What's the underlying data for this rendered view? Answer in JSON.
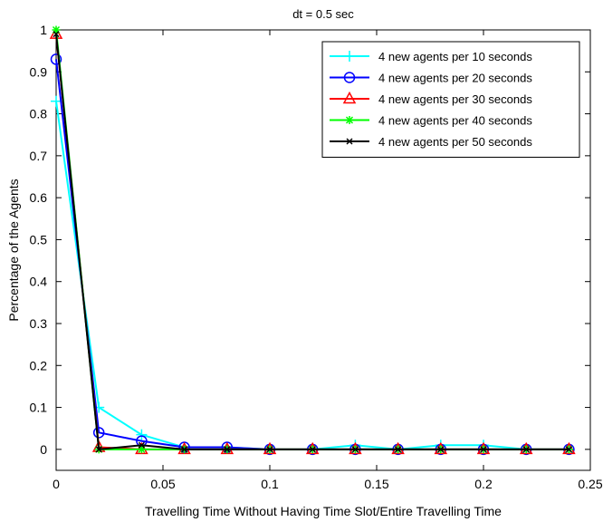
{
  "chart_data": {
    "type": "line",
    "title": "dt = 0.5 sec",
    "xlabel": "Travelling Time Without Having Time Slot/Entire Travelling Time",
    "ylabel": "Percentage of the Agents",
    "xlim": [
      0,
      0.25
    ],
    "ylim": [
      -0.05,
      1
    ],
    "xticks": [
      "0",
      "0.05",
      "0.1",
      "0.15",
      "0.2",
      "0.25"
    ],
    "yticks": [
      "0",
      "0.1",
      "0.2",
      "0.3",
      "0.4",
      "0.5",
      "0.6",
      "0.7",
      "0.8",
      "0.9",
      "1"
    ],
    "grid": false,
    "legend_position": "top-right",
    "x": [
      0,
      0.02,
      0.04,
      0.06,
      0.08,
      0.1,
      0.12,
      0.14,
      0.16,
      0.18,
      0.2,
      0.22,
      0.24
    ],
    "series": [
      {
        "name": "4 new agents per 10 seconds",
        "color": "#00ffff",
        "marker": "plus",
        "values": [
          0.83,
          0.1,
          0.035,
          0.005,
          0.005,
          0,
          0,
          0.01,
          0,
          0.01,
          0.01,
          0,
          0
        ]
      },
      {
        "name": "4 new agents per 20 seconds",
        "color": "#0000ff",
        "marker": "circle",
        "values": [
          0.93,
          0.04,
          0.02,
          0.005,
          0.005,
          0,
          0,
          0,
          0,
          0,
          0,
          0,
          0
        ]
      },
      {
        "name": "4 new agents per 30 seconds",
        "color": "#ff0000",
        "marker": "triangle",
        "values": [
          0.99,
          0.005,
          0,
          0,
          0,
          0,
          0,
          0,
          0,
          0,
          0,
          0,
          0
        ]
      },
      {
        "name": "4 new agents per 40 seconds",
        "color": "#00ff00",
        "marker": "star",
        "values": [
          1.0,
          0,
          0,
          0,
          0,
          0,
          0,
          0,
          0,
          0,
          0,
          0,
          0
        ]
      },
      {
        "name": "4 new agents per 50 seconds",
        "color": "#000000",
        "marker": "x",
        "values": [
          0.99,
          0,
          0.01,
          0,
          0,
          0,
          0,
          0,
          0,
          0,
          0,
          0,
          0
        ]
      }
    ]
  }
}
